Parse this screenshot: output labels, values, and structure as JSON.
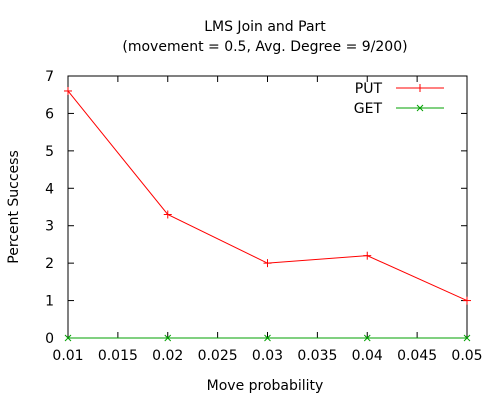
{
  "chart_data": {
    "type": "line",
    "title": "LMS Join and Part",
    "subtitle": "(movement = 0.5, Avg. Degree = 9/200)",
    "xlabel": "Move probability",
    "ylabel": "Percent Success",
    "xlim": [
      0.01,
      0.05
    ],
    "ylim": [
      0,
      7
    ],
    "x_ticks": [
      "0.01",
      "0.015",
      "0.02",
      "0.025",
      "0.03",
      "0.035",
      "0.04",
      "0.045",
      "0.05"
    ],
    "y_ticks": [
      "0",
      "1",
      "2",
      "3",
      "4",
      "5",
      "6",
      "7"
    ],
    "grid": false,
    "legend_position": "top-right",
    "series": [
      {
        "name": "PUT",
        "color": "#ff0000",
        "marker": "plus",
        "x": [
          0.01,
          0.02,
          0.03,
          0.04,
          0.05
        ],
        "y": [
          6.6,
          3.3,
          2.0,
          2.2,
          1.0
        ]
      },
      {
        "name": "GET",
        "color": "#00a000",
        "marker": "cross",
        "x": [
          0.01,
          0.02,
          0.03,
          0.04,
          0.05
        ],
        "y": [
          0,
          0,
          0,
          0,
          0
        ]
      }
    ]
  }
}
